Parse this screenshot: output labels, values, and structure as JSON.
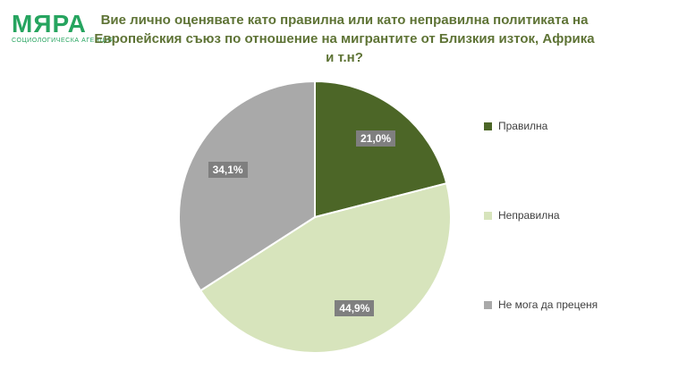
{
  "logo": {
    "name": "МЯРА",
    "subtitle": "СОЦИОЛОГИЧЕСКА АГЕНЦИЯ",
    "color": "#26a45f"
  },
  "title": {
    "line1": "Вие лично оценявате като правилна или като неправилна политиката на",
    "line2": "Европейския съюз по отношение на мигрантите от Близкия изток, Африка и т.н?",
    "color": "#5e7335"
  },
  "chart_data": {
    "type": "pie",
    "title": "Вие лично оценявате като правилна или като неправилна политиката на Европейския съюз по отношение на мигрантите от Близкия изток, Африка и т.н?",
    "slices": [
      {
        "label": "Правилна",
        "value": 21.0,
        "display": "21,0%",
        "color": "#4c6627"
      },
      {
        "label": "Неправилна",
        "value": 44.9,
        "display": "44,9%",
        "color": "#d7e4bc"
      },
      {
        "label": "Не мога да преценя",
        "value": 34.1,
        "display": "34,1%",
        "color": "#a9a9a9"
      }
    ],
    "start_angle_deg": 0,
    "direction": "clockwise",
    "legend_position": "right",
    "data_labels": {
      "background": "#7f7f7f",
      "color": "#ffffff"
    }
  }
}
